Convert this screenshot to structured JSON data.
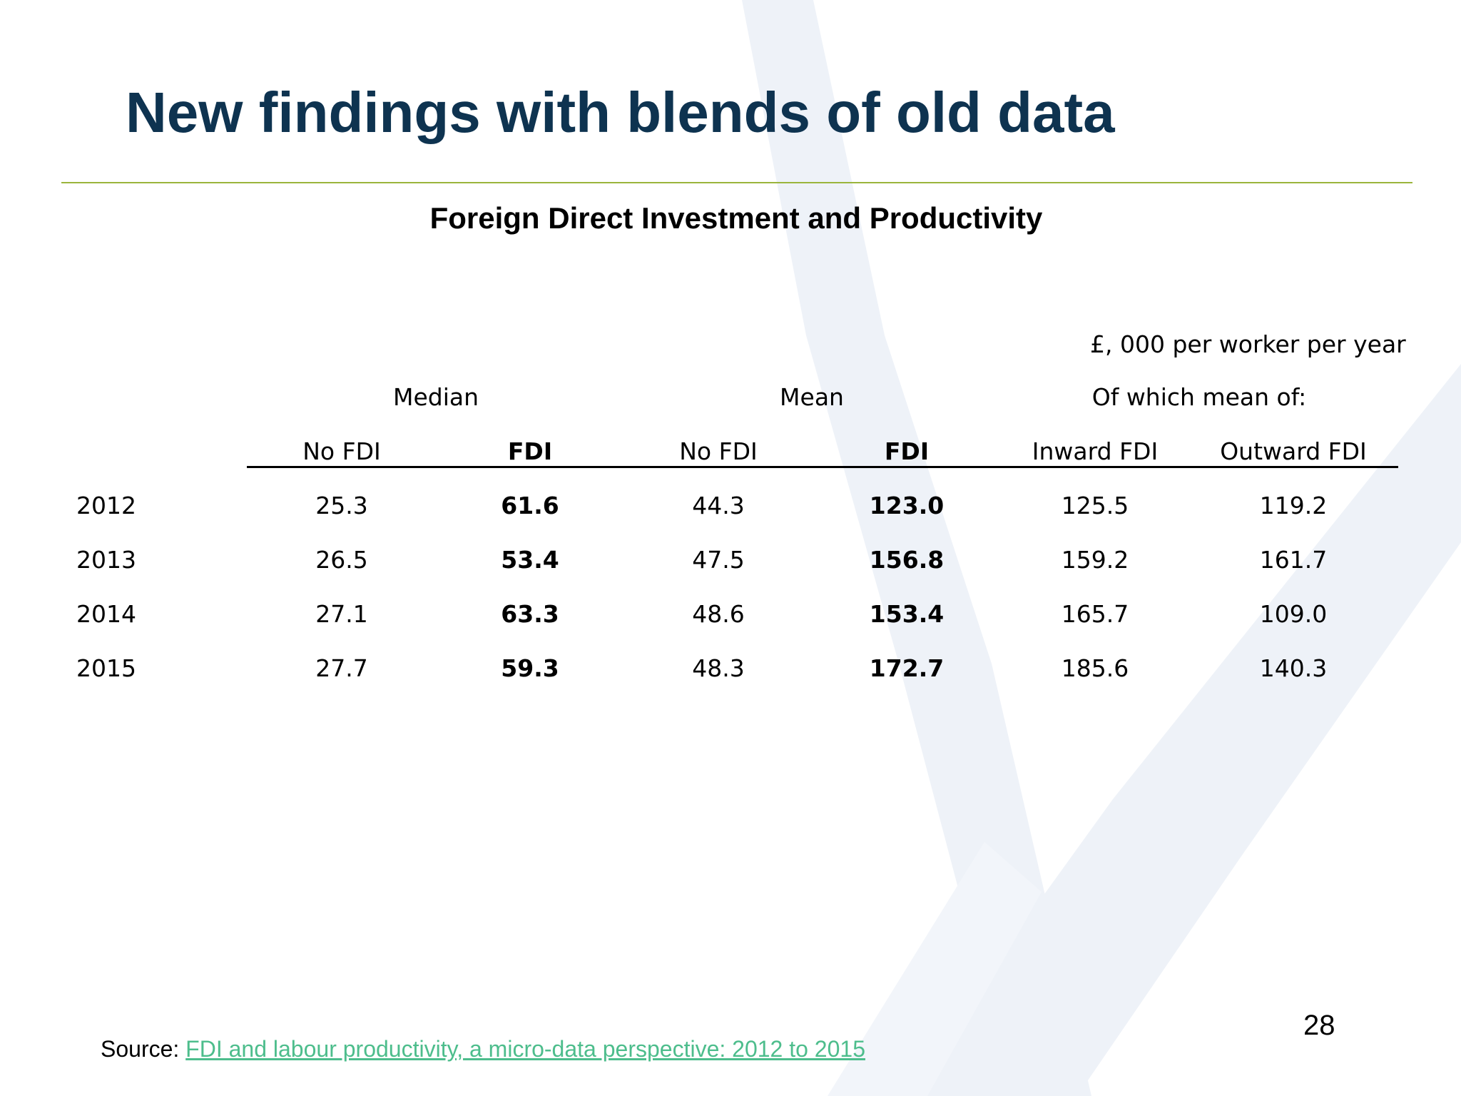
{
  "slide": {
    "title": "New findings with blends of old data",
    "page_number": "28"
  },
  "table": {
    "title": "Foreign Direct Investment and Productivity",
    "units": "£, 000 per worker per year",
    "group_headers": [
      "Median",
      "Mean",
      "Of which mean of:"
    ],
    "columns": [
      "No FDI",
      "FDI",
      "No FDI",
      "FDI",
      "Inward FDI",
      "Outward FDI"
    ],
    "rows": [
      {
        "year": "2012",
        "values": [
          "25.3",
          "61.6",
          "44.3",
          "123.0",
          "125.5",
          "119.2"
        ]
      },
      {
        "year": "2013",
        "values": [
          "26.5",
          "53.4",
          "47.5",
          "156.8",
          "159.2",
          "161.7"
        ]
      },
      {
        "year": "2014",
        "values": [
          "27.1",
          "63.3",
          "48.6",
          "153.4",
          "165.7",
          "109.0"
        ]
      },
      {
        "year": "2015",
        "values": [
          "27.7",
          "59.3",
          "48.3",
          "172.7",
          "185.6",
          "140.3"
        ]
      }
    ]
  },
  "source": {
    "prefix": "Source: ",
    "link_text": "FDI and labour productivity, a micro-data perspective: 2012 to 2015"
  },
  "colors": {
    "title": "#0e3350",
    "rule": "#9bb53c",
    "link": "#4dbd8c",
    "watermark": "#eef2f8"
  }
}
